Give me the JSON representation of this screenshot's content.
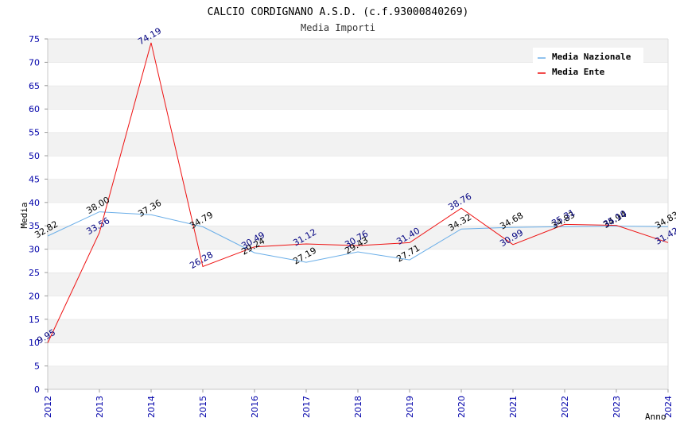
{
  "chart_data": {
    "type": "line",
    "title": "CALCIO CORDIGNANO A.S.D. (c.f.93000840269)",
    "subtitle": "Media Importi",
    "xlabel": "Anno",
    "ylabel": "Media",
    "ylim": [
      0,
      75
    ],
    "ytick_step": 5,
    "grid": "horizontal bands",
    "legend_position": "top-right",
    "categories": [
      "2012",
      "2013",
      "2014",
      "2015",
      "2016",
      "2017",
      "2018",
      "2019",
      "2020",
      "2021",
      "2022",
      "2023",
      "2024"
    ],
    "series": [
      {
        "name": "Media Nazionale",
        "color": "#6aaee8",
        "label_color": "#000000",
        "values": [
          32.82,
          38.0,
          37.36,
          34.79,
          29.24,
          27.19,
          29.43,
          27.71,
          34.32,
          34.68,
          34.83,
          34.94,
          34.83
        ],
        "labels": [
          "32.82",
          "38.00",
          "37.36",
          "34.79",
          "29.24",
          "27.19",
          "29.43",
          "27.71",
          "34.32",
          "34.68",
          "34.83",
          "34.94",
          "34.83"
        ]
      },
      {
        "name": "Media Ente",
        "color": "#ee1111",
        "label_color": "#000080",
        "values": [
          9.95,
          33.56,
          74.19,
          26.28,
          30.49,
          31.12,
          30.76,
          31.4,
          38.76,
          30.99,
          35.31,
          35.1,
          31.42
        ],
        "labels": [
          "9.95",
          "33.56",
          "74.19",
          "26.28",
          "30.49",
          "31.12",
          "30.76",
          "31.40",
          "38.76",
          "30.99",
          "35.31",
          "35.10",
          "31.42"
        ]
      }
    ]
  }
}
